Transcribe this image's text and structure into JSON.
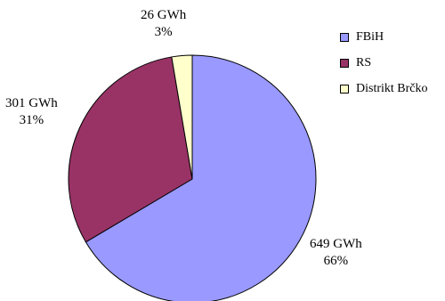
{
  "chart_data": {
    "type": "pie",
    "slices": [
      {
        "name": "FBiH",
        "value": 649,
        "unit": "GWh",
        "percent": "66%",
        "color": "#9999ff"
      },
      {
        "name": "RS",
        "value": 301,
        "unit": "GWh",
        "percent": "31%",
        "color": "#993366"
      },
      {
        "name": "Distrikt Brčko",
        "value": 26,
        "unit": "GWh",
        "percent": "3%",
        "color": "#ffffcc"
      }
    ],
    "data_labels": [
      {
        "value": "649 GWh",
        "percent": "66%"
      },
      {
        "value": "301 GWh",
        "percent": "31%"
      },
      {
        "value": "26 GWh",
        "percent": "3%"
      }
    ],
    "legend": {
      "placement": "top-right",
      "entries": [
        "FBiH",
        "RS",
        "Distrikt Brčko"
      ]
    }
  }
}
